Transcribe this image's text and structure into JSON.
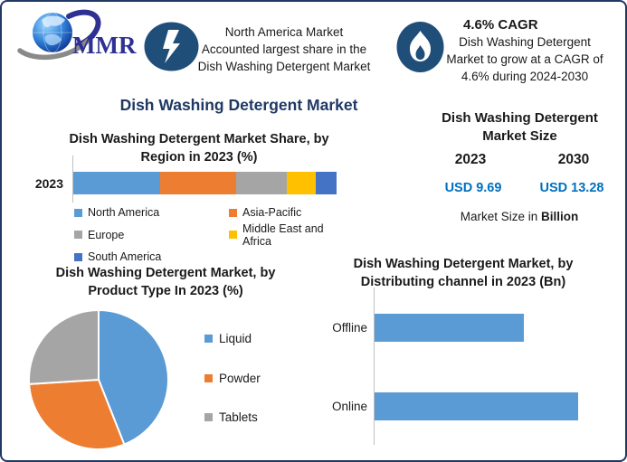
{
  "brand": {
    "logo_text": "MMR"
  },
  "header": {
    "highlight": {
      "icon": "lightning-bolt-icon",
      "text": "North America Market\nAccounted largest share in the\nDish Washing Detergent Market"
    },
    "cagr": {
      "icon": "flame-icon",
      "title": "4.6% CAGR",
      "text": "Dish Washing Detergent\nMarket to grow at a CAGR of\n4.6% during 2024-2030"
    }
  },
  "page_title": "Dish Washing Detergent Market",
  "colors": {
    "title_navy": "#1F3864",
    "text_black": "#1A1A1A",
    "value_blue": "#0070C0",
    "badge_blue": "#1F4E79",
    "frame_border": "#1F3864",
    "axis_gray": "#BFBFBF"
  },
  "chart_data": [
    {
      "name": "region_share",
      "type": "bar",
      "subtype": "stacked_horizontal",
      "title": "Dish Washing Detergent Market Share, by Region in 2023 (%)",
      "title_lines": "Dish Washing Detergent Market Share, by\nRegion in 2023 (%)",
      "categories": [
        "2023"
      ],
      "series": [
        {
          "name": "North America",
          "values": [
            33
          ],
          "color": "#5B9BD5"
        },
        {
          "name": "Asia-Pacific",
          "values": [
            29
          ],
          "color": "#ED7D31"
        },
        {
          "name": "Europe",
          "values": [
            19
          ],
          "color": "#A5A5A5"
        },
        {
          "name": "Middle East and Africa",
          "values": [
            11
          ],
          "color": "#FFC000"
        },
        {
          "name": "South America",
          "values": [
            8
          ],
          "color": "#4472C4"
        }
      ],
      "legend_position": "bottom",
      "grid": false
    },
    {
      "name": "market_size",
      "type": "table",
      "title": "Dish Washing Detergent Market Size",
      "title_lines": "Dish Washing Detergent\nMarket Size",
      "columns": [
        "2023",
        "2030"
      ],
      "values": [
        "USD 9.69",
        "USD 13.28"
      ],
      "footnote": {
        "regular": "Market Size in ",
        "bold": "Billion"
      }
    },
    {
      "name": "product_type_share",
      "type": "pie",
      "title": "Dish Washing Detergent Market, by Product Type In 2023 (%)",
      "title_lines": "Dish Washing Detergent Market, by\nProduct Type In 2023 (%)",
      "labels": [
        "Liquid",
        "Powder",
        "Tablets"
      ],
      "values": [
        44,
        30,
        26
      ],
      "colors": [
        "#5B9BD5",
        "#ED7D31",
        "#A5A5A5"
      ],
      "legend_position": "right"
    },
    {
      "name": "distribution_channel",
      "type": "bar",
      "subtype": "horizontal",
      "title": "Dish Washing Detergent Market, by Distributing channel in 2023 (Bn)",
      "title_lines": "Dish Washing Detergent Market, by\nDistributing channel in 2023 (Bn)",
      "categories": [
        "Offline",
        "Online"
      ],
      "values": [
        4.1,
        5.6
      ],
      "color": "#5B9BD5",
      "grid": false
    }
  ]
}
